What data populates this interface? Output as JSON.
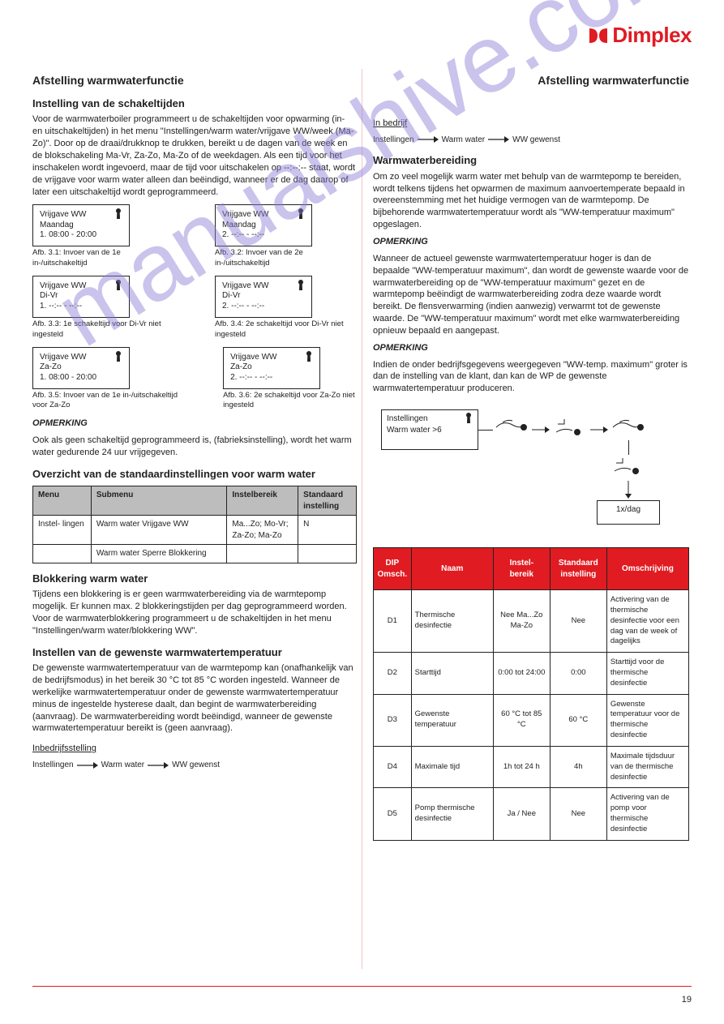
{
  "page_number": "19",
  "brand": "Dimplex",
  "brand_color": "#e01b22",
  "watermark_text": "manualshive.com",
  "left": {
    "h1": "Afstelling warmwaterfunctie",
    "h2": "Instelling van de schakeltijden",
    "p1": "Voor de warmwaterboiler programmeert u de schakeltijden voor opwarming (in- en uitschakeltijden) in het menu \"Instellingen/warm water/vrijgave WW/week (Ma-Zo)\". Door op de draai/drukknop te drukken, bereikt u de dagen van de week en de blokschakeling Ma-Vr, Za-Zo, Ma-Zo of de weekdagen. Als een tijd voor het inschakelen wordt ingevoerd, maar de tijd voor uitschakelen op --:--:-- staat, wordt de vrijgave voor warm water alleen dan beëindigd, wanneer er de dag daarop of later een uitschakeltijd wordt geprogrammeerd.",
    "row1": {
      "box1": {
        "l1": "Vrijgave WW",
        "l2": "Maandag",
        "l3": "1. 08:00 - 20:00"
      },
      "box2": {
        "l1": "Vrijgave WW",
        "l2": "Maandag",
        "l3": "2. --:-- - --:--"
      },
      "cap1": "Afb. 3.1: Invoer van de 1e in-/uitschakeltijd",
      "cap2": "Afb. 3.2: Invoer van de 2e in-/uitschakeltijd"
    },
    "row2": {
      "box1": {
        "l1": "Vrijgave WW",
        "l2": "Di-Vr",
        "l3": "1. --:-- - --:--"
      },
      "box2": {
        "l1": "Vrijgave WW",
        "l2": "Di-Vr",
        "l3": "2. --:-- - --:--"
      },
      "cap1": "Afb. 3.3: 1e schakeltijd voor Di-Vr niet ingesteld",
      "cap2": "Afb. 3.4: 2e schakeltijd voor Di-Vr niet ingesteld"
    },
    "row3": {
      "box1": {
        "l1": "Vrijgave WW",
        "l2": "Za-Zo",
        "l3": "1. 08:00 - 20:00"
      },
      "box2": {
        "l1": "Vrijgave WW",
        "l2": "Za-Zo",
        "l3": "2. --:-- - --:--"
      },
      "cap1": "Afb. 3.5: Invoer van de 1e in-/uitschakeltijd voor Za-Zo",
      "cap2": "Afb. 3.6: 2e schakeltijd voor Za-Zo niet ingesteld"
    },
    "note1_label": "OPMERKING",
    "note1_text": "Ook als geen schakeltijd geprogrammeerd is, (fabrieksinstelling), wordt het warm water gedurende 24 uur vrijgegeven.",
    "h3": "Overzicht van de standaardinstellingen voor warm water",
    "table1": {
      "cols": [
        "Menu",
        "Submenu",
        "Instelbereik",
        "Standaard\ninstelling"
      ],
      "rows": [
        [
          "Instel-\nlingen",
          "Warm water  Vrijgave WW",
          "Ma...Zo;\nMo-Vr; Za-Zo;\nMa-Zo",
          "N"
        ],
        [
          "",
          "Warm water  Sperre  Blokkering",
          " ",
          ""
        ]
      ]
    },
    "h4": "Blokkering warm water",
    "p2": "Tijdens een blokkering is er geen warmwaterbereiding via de warmtepomp mogelijk. Er kunnen max. 2 blokkeringstijden per dag geprogrammeerd worden. Voor de warmwaterblokkering programmeert u de schakeltijden in het menu \"Instellingen/warm water/blokkering WW\".",
    "h5": "Instellen van de gewenste warmwatertemperatuur",
    "p3": "De gewenste warmwatertemperatuur van de warmtepomp kan (onafhankelijk van de bedrijfsmodus) in het bereik 30 °C tot 85 °C worden ingesteld. Wanneer de werkelijke warmwatertemperatuur onder de gewenste warmwatertemperatuur minus de ingestelde hysterese daalt, dan begint de warmwaterbereiding (aanvraag). De warmwaterbereiding wordt beëindigd, wanneer de gewenste warmwatertemperatuur bereikt is (geen aanvraag).",
    "seq_label": "Inbedrijfsstelling",
    "seq": [
      "Instellingen",
      "Warm water",
      "WW gewenst"
    ]
  },
  "right": {
    "h": "Afstelling warmwaterfunctie",
    "seq_label": "In bedrijf",
    "seq": [
      "Instellingen",
      "Warm water",
      "WW gewenst"
    ],
    "h1": "Warmwaterbereiding",
    "p1": "Om zo veel mogelijk warm water met behulp van de warmtepomp te bereiden, wordt telkens tijdens het opwarmen de maximum aanvoertemperate bepaald in overeenstemming met het huidige vermogen van de warmtepomp. De bijbehorende warmwatertemperatuur wordt als \"WW-temperatuur maximum\" opgeslagen.",
    "note_label": "OPMERKING",
    "note_text": "Wanneer de actueel gewenste warmwatertemperatuur hoger is dan de bepaalde \"WW-temperatuur maximum\", dan wordt de gewenste waarde voor de warmwaterbereiding op de \"WW-temperatuur maximum\" gezet en de warmtepomp beëindigt de warmwaterbereiding zodra deze waarde wordt bereikt. De flensverwarming (indien aanwezig) verwarmt tot de gewenste waarde. De \"WW-temperatuur maximum\" wordt met elke warmwaterbereiding opnieuw bepaald en aangepast.",
    "note2_label": "OPMERKING",
    "note2_text": "Indien de onder bedrijfsgegevens weergegeven \"WW-temp. maximum\" groter is dan de instelling van de klant, dan kan de WP de gewenste warmwatertemperatuur produceren.",
    "flow": {
      "box1_l1": "Instellingen",
      "box1_l2": "Warm water  >6",
      "box2": "1x/dag",
      "hand1": "turn",
      "hand2": "press",
      "hand3": "turn",
      "hand4": "press"
    },
    "table2": {
      "cols": [
        "DIP\nOmsch.",
        "Naam",
        "Instel-\nbereik",
        "Standaard\ninstelling",
        "Omschrijving"
      ],
      "rows": [
        [
          "D1",
          "Thermische\ndesinfectie",
          "Nee\nMa...Zo\nMa-Zo",
          "Nee",
          "Activering van de thermische desinfectie voor een dag van de week of dagelijks"
        ],
        [
          "D2",
          "Starttijd",
          "0:00 tot\n24:00",
          "0:00",
          "Starttijd voor de thermische desinfectie"
        ],
        [
          "D3",
          "Gewenste\ntemperatuur",
          "60 °C tot\n85 °C",
          "60 °C",
          "Gewenste temperatuur voor de thermische desinfectie"
        ],
        [
          "D4",
          "Maximale tijd",
          "1h tot 24 h",
          "4h",
          "Maximale tijdsduur van de thermische desinfectie"
        ],
        [
          "D5",
          "Pomp\nthermische\ndesinfectie",
          "Ja / Nee",
          "Nee",
          "Activering van de pomp voor thermische desinfectie"
        ]
      ]
    }
  }
}
